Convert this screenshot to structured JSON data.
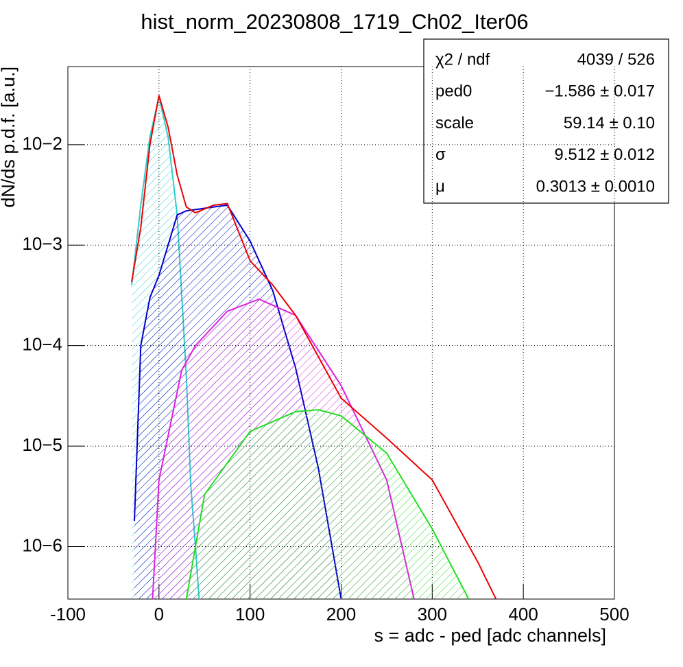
{
  "chart_data": {
    "type": "line",
    "title": "hist_norm_20230808_1719_Ch02_Iter06",
    "x_label": "s = adc - ped [adc channels]",
    "y_label": "dN/ds p.d.f. [a.u.]",
    "log_y": true,
    "grid": true,
    "xlim": [
      -100,
      500
    ],
    "xticks": [
      -100,
      0,
      100,
      200,
      300,
      400,
      500
    ],
    "ylim": [
      3e-07,
      0.06
    ],
    "yticks": [
      {
        "value": 1e-06,
        "label": "10−6"
      },
      {
        "value": 1e-05,
        "label": "10−5"
      },
      {
        "value": 0.0001,
        "label": "10−4"
      },
      {
        "value": 0.001,
        "label": "10−3"
      },
      {
        "value": 0.01,
        "label": "10−2"
      }
    ],
    "series": [
      {
        "color": "#33cccc",
        "filled": true,
        "x": [
          -30,
          -20,
          -10,
          0,
          10,
          20,
          30,
          35,
          40,
          44
        ],
        "values": [
          0.0004,
          0.0025,
          0.012,
          0.03,
          0.012,
          0.002,
          5e-05,
          4e-06,
          1e-06,
          3e-07
        ]
      },
      {
        "color": "#0000cc",
        "filled": true,
        "x": [
          -27,
          -20,
          -10,
          0,
          20,
          30,
          60,
          75,
          100,
          125,
          150,
          175,
          200
        ],
        "values": [
          1.8e-06,
          0.0001,
          0.0003,
          0.0005,
          0.002,
          0.0022,
          0.0024,
          0.0025,
          0.0011,
          0.00035,
          6e-05,
          6e-06,
          3e-07
        ]
      },
      {
        "color": "#dd22dd",
        "filled": true,
        "x": [
          -7,
          0,
          25,
          40,
          75,
          110,
          150,
          200,
          250,
          280
        ],
        "values": [
          3e-07,
          4.6e-06,
          5.7e-05,
          0.0001,
          0.00022,
          0.00029,
          0.0002,
          4e-05,
          4.6e-06,
          3e-07
        ]
      },
      {
        "color": "#22dd22",
        "filled": true,
        "x": [
          30,
          50,
          100,
          150,
          175,
          200,
          250,
          300,
          340
        ],
        "values": [
          3e-07,
          3.3e-06,
          1.4e-05,
          2.2e-05,
          2.3e-05,
          2e-05,
          8.5e-06,
          1.5e-06,
          3e-07
        ]
      },
      {
        "color": "#ee0000",
        "filled": false,
        "x": [
          -30,
          -20,
          -10,
          0,
          10,
          20,
          30,
          40,
          60,
          75,
          100,
          125,
          150,
          200,
          250,
          300,
          350,
          370
        ],
        "values": [
          0.00043,
          0.0015,
          0.01,
          0.031,
          0.015,
          0.005,
          0.0024,
          0.0021,
          0.0025,
          0.0026,
          0.0007,
          0.0004,
          0.0002,
          3e-05,
          1.2e-05,
          4.6e-06,
          7e-07,
          3e-07
        ]
      }
    ]
  },
  "stats_box": {
    "rows": [
      {
        "name": "χ2 / ndf",
        "value": "4039 / 526"
      },
      {
        "name": "ped0",
        "value": "−1.586 ± 0.017"
      },
      {
        "name": "scale",
        "value": "59.14 ± 0.10"
      },
      {
        "name": "σ",
        "value": "9.512 ± 0.012"
      },
      {
        "name": "μ",
        "value": "0.3013 ± 0.0010"
      }
    ]
  }
}
